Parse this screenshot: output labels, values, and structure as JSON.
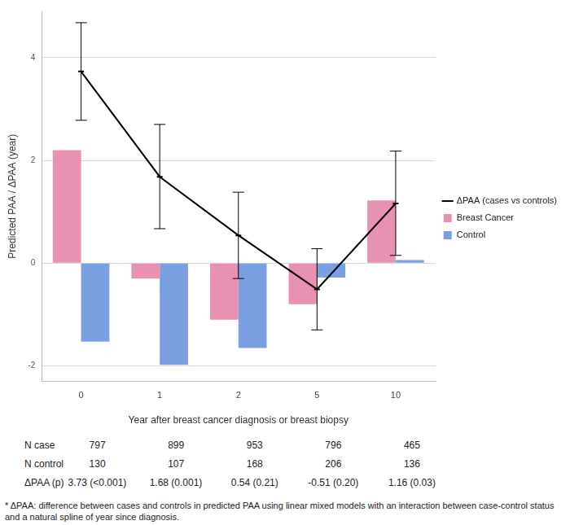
{
  "chart_data": {
    "type": "bar",
    "x_label": "Year after breast cancer diagnosis or breast biopsy",
    "y_label": "Predicted PAA / ΔPAA (year)",
    "categories": [
      "0",
      "1",
      "2",
      "5",
      "10"
    ],
    "series": [
      {
        "name": "ΔPAA (cases vs controls)",
        "type": "line",
        "color": "#000000",
        "marker": "circle",
        "values": [
          3.73,
          1.68,
          0.54,
          -0.51,
          1.16
        ],
        "error_low": [
          2.78,
          0.67,
          -0.3,
          -1.3,
          0.15
        ],
        "error_high": [
          4.68,
          2.7,
          1.38,
          0.28,
          2.18
        ]
      },
      {
        "name": "Breast Cancer",
        "type": "bar",
        "color": "#e891b2",
        "values": [
          2.2,
          -0.3,
          -1.1,
          -0.8,
          1.22
        ]
      },
      {
        "name": "Control",
        "type": "bar",
        "color": "#7ba0e2",
        "values": [
          -1.53,
          -1.98,
          -1.65,
          -0.28,
          0.06
        ]
      }
    ],
    "ylim": [
      -2.3,
      4.9
    ],
    "yticks": [
      -2,
      0,
      2,
      4
    ],
    "grid": true,
    "legend": "right"
  },
  "table": {
    "rows": [
      {
        "label": "N case",
        "values": [
          797,
          899,
          953,
          796,
          465
        ]
      },
      {
        "label": "N control",
        "values": [
          130,
          107,
          168,
          206,
          136
        ]
      },
      {
        "label": "ΔPAA (p)",
        "values": [
          "3.73 (<0.001)",
          "1.68 (0.001)",
          "0.54 (0.21)",
          "-0.51 (0.20)",
          "1.16 (0.03)"
        ]
      }
    ]
  },
  "footnote": "* ΔPAA: difference between cases and controls in predicted PAA using linear mixed models with an interaction between case-control status and a natural spline of year since diagnosis."
}
